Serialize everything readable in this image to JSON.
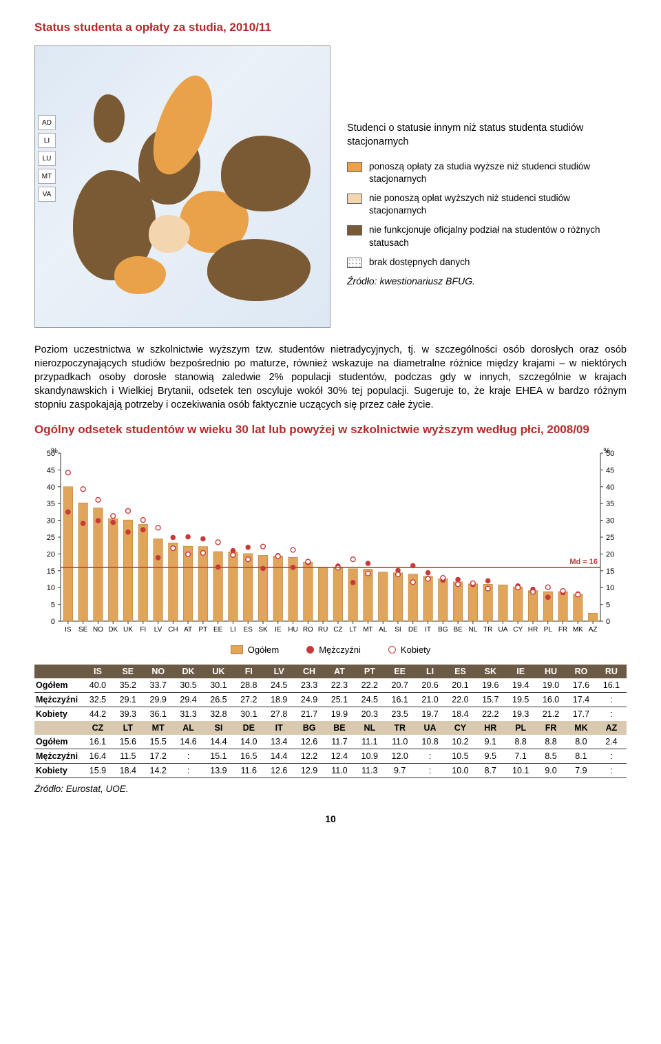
{
  "title": "Status studenta a opłaty za studia, 2010/11",
  "map_side_labels": [
    "AD",
    "LI",
    "LU",
    "MT",
    "VA"
  ],
  "map_legend_title": "Studenci o statusie innym niż status studenta studiów stacjonarnych",
  "map_legend": [
    {
      "color": "#e9a24a",
      "text": "ponoszą opłaty za studia wyższe niż studenci studiów stacjonarnych"
    },
    {
      "color": "#f3d6b0",
      "text": "nie ponoszą opłat wyższych niż studenci studiów stacjonarnych"
    },
    {
      "color": "#7a5a34",
      "text": "nie funkcjonuje oficjalny podział na studentów o różnych statusach"
    },
    {
      "color": "#ffffff",
      "text": "brak dostępnych danych",
      "dotted": true
    }
  ],
  "map_source": "Źródło: kwestionariusz BFUG.",
  "body_paragraph": "Poziom uczestnictwa w szkolnictwie wyższym tzw. studentów nietradycyjnych, tj. w szczególności osób dorosłych oraz osób nierozpoczynających studiów bezpośrednio po maturze, również wskazuje na diametralne różnice między krajami – w niektórych przypadkach osoby dorosłe stanowią zaledwie 2% populacji studentów, podczas gdy w innych, szczególnie w krajach skandynawskich i Wielkiej Brytanii, odsetek ten oscyluje wokół 30% tej populacji. Sugeruje to, że kraje EHEA w bardzo różnym stopniu zaspokajają potrzeby i oczekiwania osób faktycznie uczących się przez całe życie.",
  "chart_title": "Ogólny odsetek studentów w wieku 30 lat lub powyżej w szkolnictwie wyższym według płci, 2008/09",
  "chart": {
    "ylim": [
      0,
      50
    ],
    "ytick_step": 5,
    "median": 16,
    "median_label": "Md = 16",
    "bar_color": "#e0a45a",
    "bar_border": "#b8843a",
    "male_dot": {
      "fill": "#c63a3a",
      "stroke": "#c63a3a"
    },
    "female_dot": {
      "fill": "#ffffff",
      "stroke": "#c63a3a"
    },
    "median_line_color": "#c63a3a",
    "axis_color": "#333",
    "grid": false,
    "y_label": "%",
    "categories": [
      "IS",
      "SE",
      "NO",
      "DK",
      "UK",
      "FI",
      "LV",
      "CH",
      "AT",
      "PT",
      "EE",
      "LI",
      "ES",
      "SK",
      "IE",
      "HU",
      "RO",
      "RU",
      "CZ",
      "LT",
      "MT",
      "AL",
      "SI",
      "DE",
      "IT",
      "BG",
      "BE",
      "NL",
      "TR",
      "UA",
      "CY",
      "HR",
      "PL",
      "FR",
      "MK",
      "AZ"
    ],
    "bars": [
      40.0,
      35.2,
      33.7,
      30.5,
      30.1,
      28.8,
      24.5,
      23.3,
      22.3,
      22.2,
      20.7,
      20.6,
      20.1,
      19.6,
      19.4,
      19.0,
      17.6,
      16.1,
      16.1,
      15.6,
      15.5,
      14.6,
      14.4,
      14.0,
      13.4,
      12.6,
      11.7,
      11.1,
      11.0,
      10.8,
      10.2,
      9.1,
      8.8,
      8.8,
      8.0,
      2.4
    ],
    "male": [
      32.5,
      29.1,
      29.9,
      29.4,
      26.5,
      27.2,
      18.9,
      24.9,
      25.1,
      24.5,
      16.1,
      21.0,
      22.0,
      15.7,
      19.5,
      16.0,
      17.4,
      null,
      16.4,
      11.5,
      17.2,
      null,
      15.1,
      16.5,
      14.4,
      12.2,
      12.4,
      10.9,
      12.0,
      null,
      10.5,
      9.5,
      7.1,
      8.5,
      8.1,
      null
    ],
    "female": [
      44.2,
      39.3,
      36.1,
      31.3,
      32.8,
      30.1,
      27.8,
      21.7,
      19.9,
      20.3,
      23.5,
      19.7,
      18.4,
      22.2,
      19.3,
      21.2,
      17.7,
      null,
      15.9,
      18.4,
      14.2,
      null,
      13.9,
      11.6,
      12.6,
      12.9,
      11.0,
      11.3,
      9.7,
      null,
      10.0,
      8.7,
      10.1,
      9.0,
      7.9,
      null
    ]
  },
  "chart_legend_labels": {
    "total": "Ogółem",
    "male": "Mężczyźni",
    "female": "Kobiety"
  },
  "table": {
    "row1_hdr": [
      "IS",
      "SE",
      "NO",
      "DK",
      "UK",
      "FI",
      "LV",
      "CH",
      "AT",
      "PT",
      "EE",
      "LI",
      "ES",
      "SK",
      "IE",
      "HU",
      "RO",
      "RU"
    ],
    "row1": {
      "Ogółem": [
        "40.0",
        "35.2",
        "33.7",
        "30.5",
        "30.1",
        "28.8",
        "24.5",
        "23.3",
        "22.3",
        "22.2",
        "20.7",
        "20.6",
        "20.1",
        "19.6",
        "19.4",
        "19.0",
        "17.6",
        "16.1"
      ],
      "Mężczyźni": [
        "32.5",
        "29.1",
        "29.9",
        "29.4",
        "26.5",
        "27.2",
        "18.9",
        "24.9",
        "25.1",
        "24.5",
        "16.1",
        "21.0",
        "22.0",
        "15.7",
        "19.5",
        "16.0",
        "17.4",
        ":"
      ],
      "Kobiety": [
        "44.2",
        "39.3",
        "36.1",
        "31.3",
        "32.8",
        "30.1",
        "27.8",
        "21.7",
        "19.9",
        "20.3",
        "23.5",
        "19.7",
        "18.4",
        "22.2",
        "19.3",
        "21.2",
        "17.7",
        ":"
      ]
    },
    "row2_hdr": [
      "CZ",
      "LT",
      "MT",
      "AL",
      "SI",
      "DE",
      "IT",
      "BG",
      "BE",
      "NL",
      "TR",
      "UA",
      "CY",
      "HR",
      "PL",
      "FR",
      "MK",
      "AZ"
    ],
    "row2": {
      "Ogółem": [
        "16.1",
        "15.6",
        "15.5",
        "14.6",
        "14.4",
        "14.0",
        "13.4",
        "12.6",
        "11.7",
        "11.1",
        "11.0",
        "10.8",
        "10.2",
        "9.1",
        "8.8",
        "8.8",
        "8.0",
        "2.4"
      ],
      "Mężczyźni": [
        "16.4",
        "11.5",
        "17.2",
        ":",
        "15.1",
        "16.5",
        "14.4",
        "12.2",
        "12.4",
        "10.9",
        "12.0",
        ":",
        "10.5",
        "9.5",
        "7.1",
        "8.5",
        "8.1",
        ":"
      ],
      "Kobiety": [
        "15.9",
        "18.4",
        "14.2",
        ":",
        "13.9",
        "11.6",
        "12.6",
        "12.9",
        "11.0",
        "11.3",
        "9.7",
        ":",
        "10.0",
        "8.7",
        "10.1",
        "9.0",
        "7.9",
        ":"
      ]
    },
    "row_labels": {
      "total": "Ogółem",
      "male": "Mężczyźni",
      "female": "Kobiety"
    }
  },
  "table_source": "Źródło: Eurostat, UOE.",
  "page_number": "10"
}
